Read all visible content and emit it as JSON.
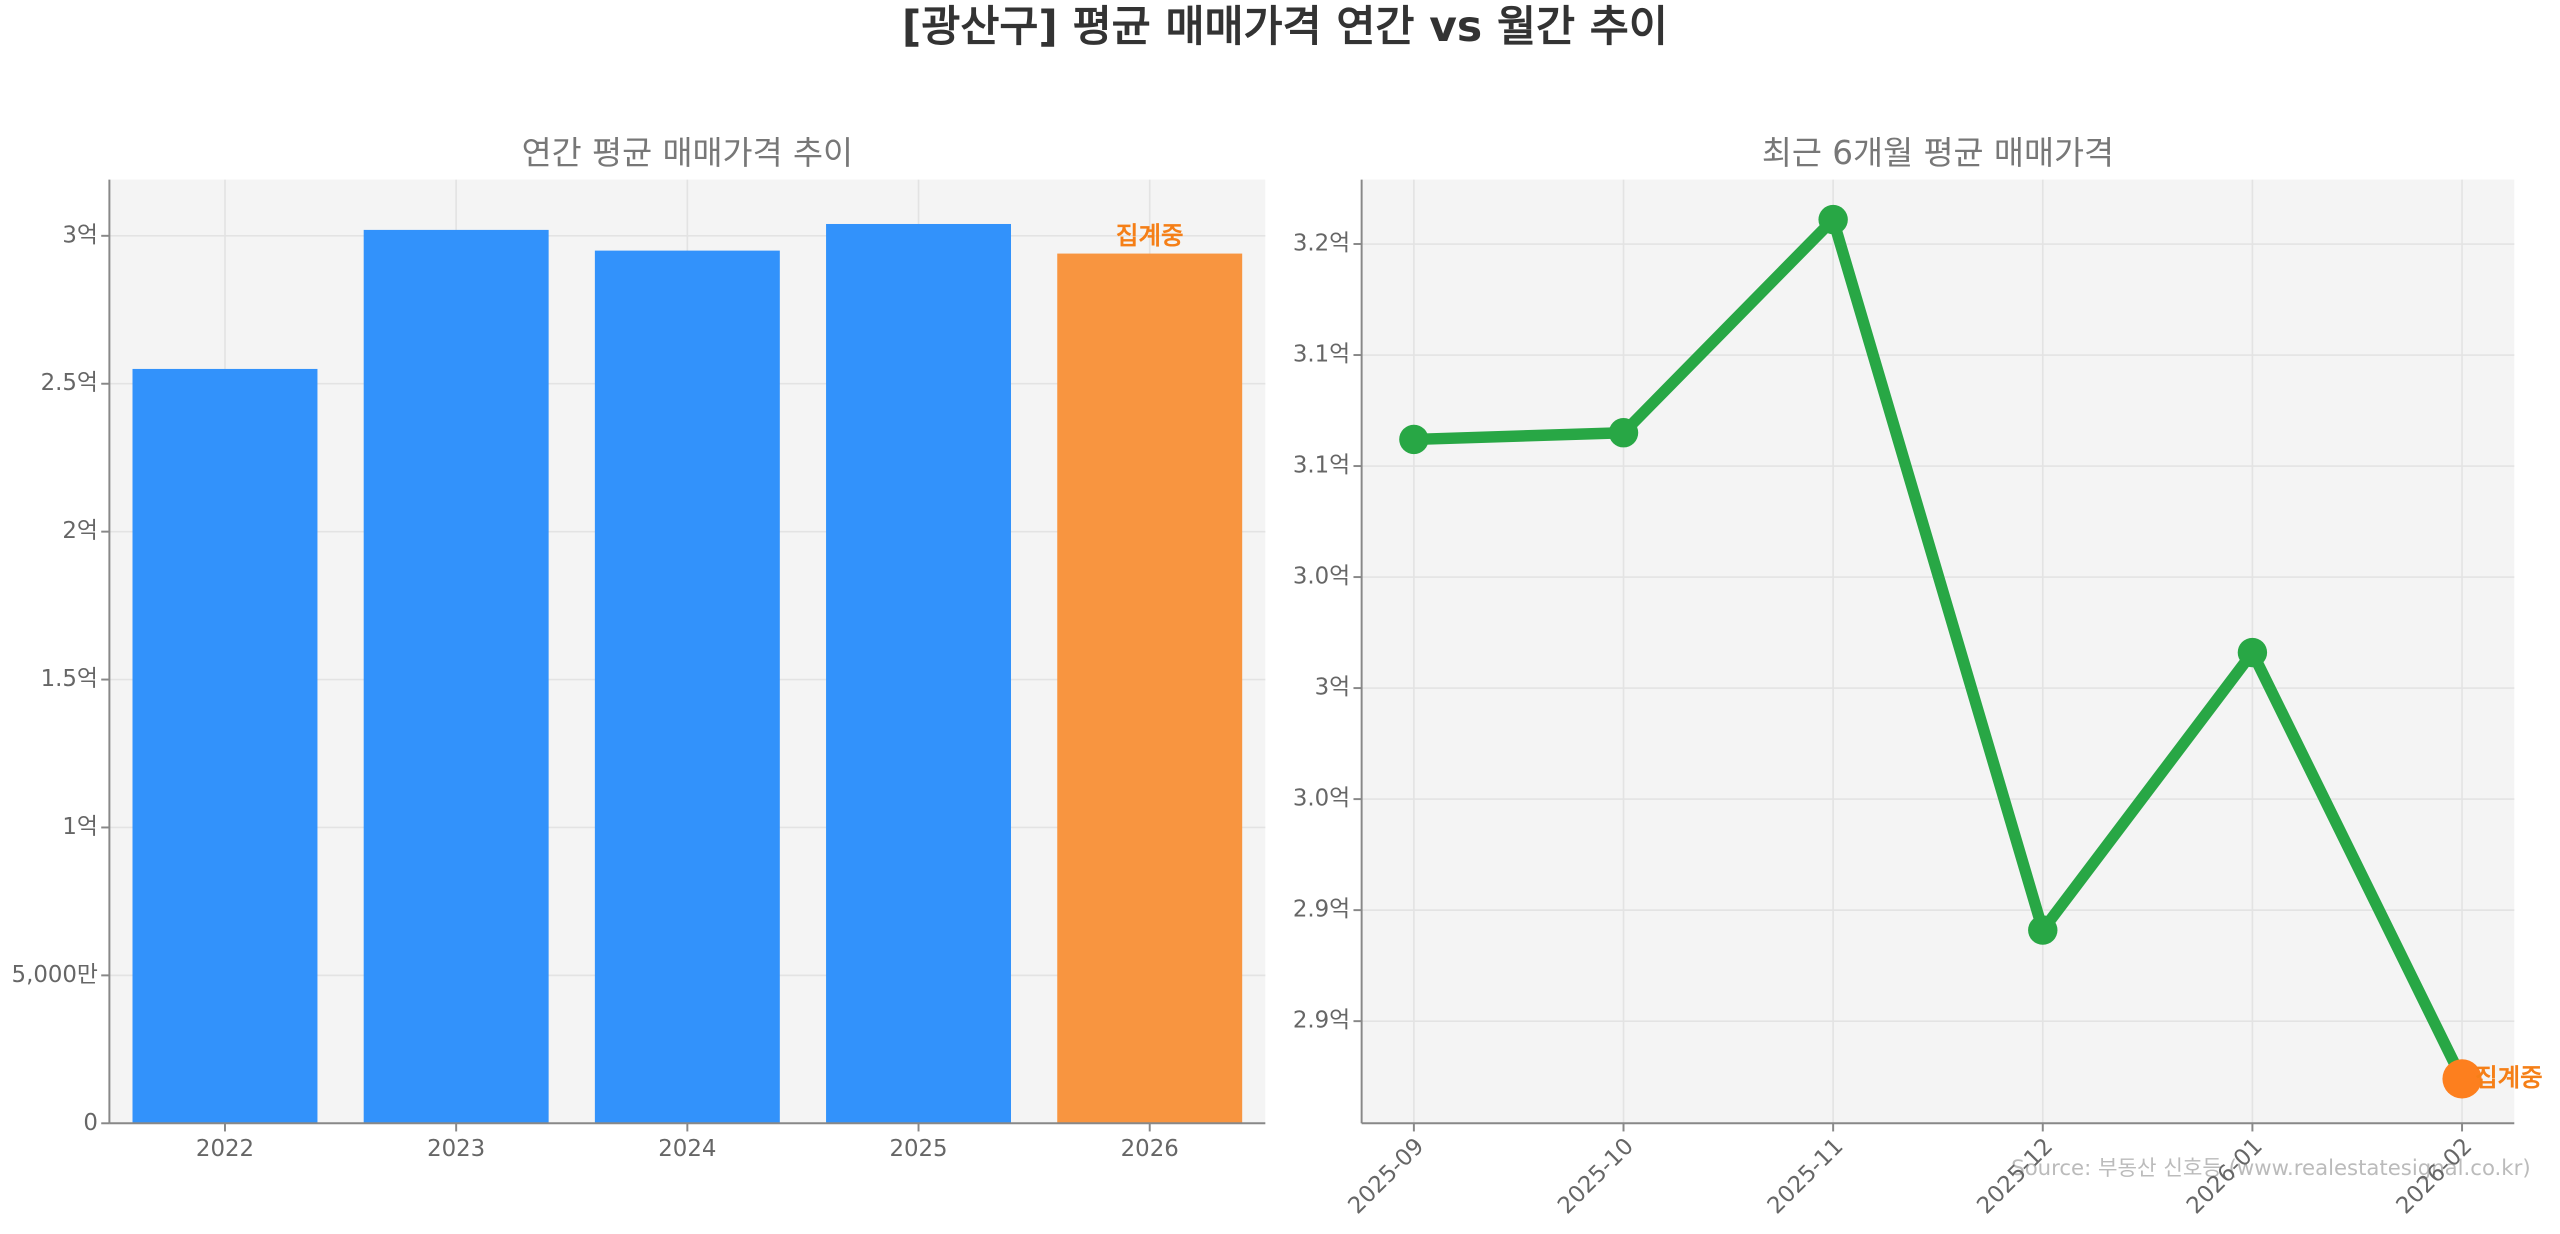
{
  "title": "[광산구] 평균 매매가격 연간 vs 월간 추이",
  "source": "Source: 부동산 신호등 (www.realestatesignal.co.kr)",
  "chart_data": [
    {
      "type": "bar",
      "title": "연간 평균 매매가격 추이",
      "categories": [
        "2022",
        "2023",
        "2024",
        "2025",
        "2026"
      ],
      "values": [
        2.55,
        3.02,
        2.95,
        3.04,
        2.94
      ],
      "colors": [
        "#3292fb",
        "#3292fb",
        "#3292fb",
        "#3292fb",
        "#f89540"
      ],
      "annotation": "집계중",
      "annotation_color": "#f57f17",
      "ylim": [
        0,
        3.19
      ],
      "yticks": [
        0,
        {
          "value": 0.5,
          "label": "5,000만"
        },
        {
          "value": 1,
          "label": "1억"
        },
        {
          "value": 1.5,
          "label": "1.5억"
        },
        {
          "value": 2,
          "label": "2억"
        },
        {
          "value": 2.5,
          "label": "2.5억"
        },
        {
          "value": 3,
          "label": "3억"
        }
      ],
      "grid": true
    },
    {
      "type": "line",
      "title": "최근 6개월 평균 매매가격",
      "categories": [
        "2025-09",
        "2025-10",
        "2025-11",
        "2025-12",
        "2026-01",
        "2026-02"
      ],
      "series": [
        {
          "name": "평균 매매가격",
          "color": "#28a745",
          "values": [
            3.112,
            3.115,
            3.211,
            2.891,
            3.016,
            2.824
          ]
        }
      ],
      "highlight_color": "#fd7f1e",
      "annotation": "집계중",
      "annotation_color": "#f57f17",
      "ylim": [
        2.804,
        3.229
      ],
      "yticks": [
        {
          "value": 2.85,
          "label": "2.9억"
        },
        {
          "value": 2.9,
          "label": "2.9억"
        },
        {
          "value": 2.95,
          "label": "3.0억"
        },
        {
          "value": 3.0,
          "label": "3억"
        },
        {
          "value": 3.05,
          "label": "3.0억"
        },
        {
          "value": 3.1,
          "label": "3.1억"
        },
        {
          "value": 3.15,
          "label": "3.1억"
        },
        {
          "value": 3.2,
          "label": "3.2억"
        }
      ],
      "grid": true
    }
  ]
}
